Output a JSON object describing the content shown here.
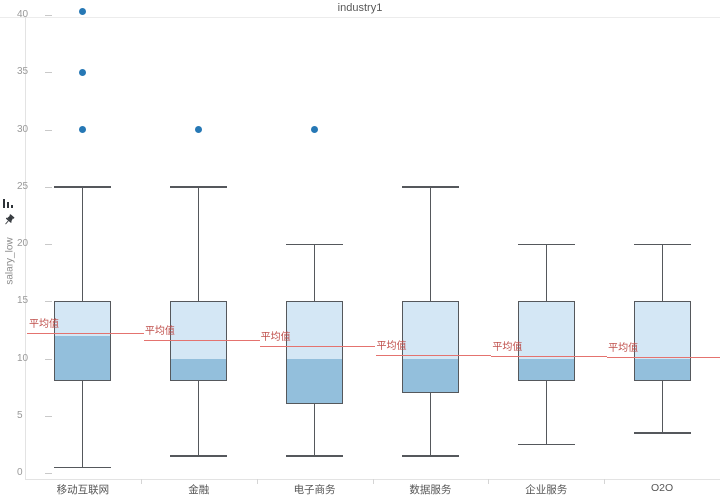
{
  "title": "industry1",
  "mean_label": "平均值",
  "toolbar": {
    "icons": [
      "bar-chart-icon",
      "pin-icon"
    ]
  },
  "y_axis": {
    "label": "salary_low",
    "ticks": [
      0,
      5,
      10,
      15,
      20,
      25,
      30,
      35,
      40
    ]
  },
  "colors": {
    "box_upper": "#d4e7f5",
    "box_lower": "#93bfdc",
    "box_border": "#55585c",
    "whisker": "#55585c",
    "outlier": "#2678b5",
    "mean_line": "#e4736f",
    "mean_text": "#bf4e4a",
    "axis_line": "#e3e3e3",
    "tick_text": "#999999",
    "category_text": "#555555",
    "title_text": "#595959"
  },
  "chart_data": {
    "type": "boxplot",
    "title": "industry1",
    "xlabel": "",
    "ylabel": "salary_low",
    "ylim": [
      0,
      41
    ],
    "grid": false,
    "legend_position": "none",
    "categories": [
      "移动互联网",
      "金融",
      "电子商务",
      "数据服务",
      "企业服务",
      "O2O"
    ],
    "series": [
      {
        "category": "移动互联网",
        "low": 0.5,
        "q1": 8,
        "median": 12,
        "q3": 15,
        "high": 25,
        "mean": 12.2,
        "outliers": [
          30,
          35,
          40.3
        ]
      },
      {
        "category": "金融",
        "low": 1.5,
        "q1": 8,
        "median": 10,
        "q3": 15,
        "high": 25,
        "mean": 11.6,
        "outliers": [
          30
        ]
      },
      {
        "category": "电子商务",
        "low": 1.5,
        "q1": 6,
        "median": 10,
        "q3": 15,
        "high": 20,
        "mean": 11.1,
        "outliers": [
          30
        ]
      },
      {
        "category": "数据服务",
        "low": 1.5,
        "q1": 7,
        "median": 10,
        "q3": 15,
        "high": 25,
        "mean": 10.3,
        "outliers": []
      },
      {
        "category": "企业服务",
        "low": 2.5,
        "q1": 8,
        "median": 10,
        "q3": 15,
        "high": 20,
        "mean": 10.2,
        "outliers": []
      },
      {
        "category": "O2O",
        "low": 3.5,
        "q1": 8,
        "median": 10,
        "q3": 15,
        "high": 20,
        "mean": 10.1,
        "outliers": []
      }
    ]
  }
}
